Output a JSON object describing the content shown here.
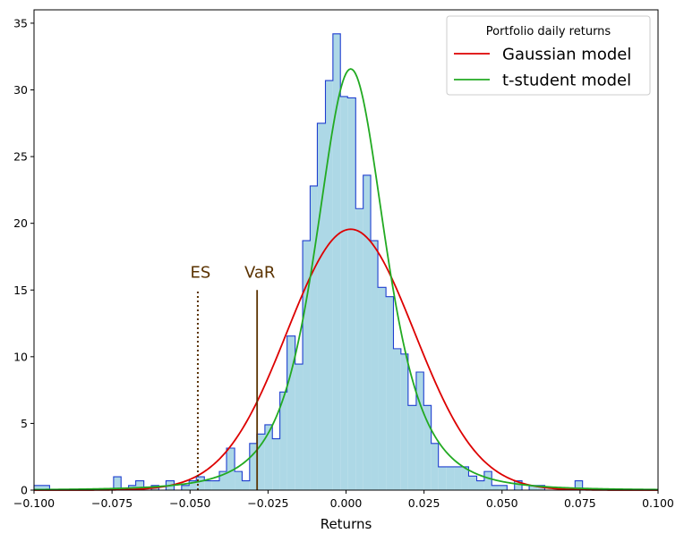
{
  "chart_data": {
    "type": "histogram",
    "title": "",
    "xlabel": "Returns",
    "ylabel": "",
    "xlim": [
      -0.1,
      0.1
    ],
    "ylim": [
      0,
      36
    ],
    "xticks": [
      -0.1,
      -0.075,
      -0.05,
      -0.025,
      0.0,
      0.025,
      0.05,
      0.075,
      0.1
    ],
    "xtick_labels": [
      "−0.100",
      "−0.075",
      "−0.050",
      "−0.025",
      "0.000",
      "0.025",
      "0.050",
      "0.075",
      "0.100"
    ],
    "yticks": [
      0,
      5,
      10,
      15,
      20,
      25,
      30,
      35
    ],
    "ytick_labels": [
      "0",
      "5",
      "10",
      "15",
      "20",
      "25",
      "30",
      "35"
    ],
    "histogram": {
      "name": "Portfolio daily returns",
      "fill_color": "#add8e6",
      "edge_color": "#1f3fcf",
      "bins": [
        {
          "x0": -0.1,
          "x1": -0.095,
          "h": 0.35
        },
        {
          "x0": -0.095,
          "x1": -0.0745,
          "h": 0
        },
        {
          "x0": -0.0745,
          "x1": -0.0721,
          "h": 1.0
        },
        {
          "x0": -0.0721,
          "x1": -0.0697,
          "h": 0
        },
        {
          "x0": -0.0697,
          "x1": -0.0674,
          "h": 0.35
        },
        {
          "x0": -0.0674,
          "x1": -0.0648,
          "h": 0.7
        },
        {
          "x0": -0.0648,
          "x1": -0.0624,
          "h": 0
        },
        {
          "x0": -0.0624,
          "x1": -0.06,
          "h": 0.35
        },
        {
          "x0": -0.06,
          "x1": -0.0577,
          "h": 0
        },
        {
          "x0": -0.0577,
          "x1": -0.0551,
          "h": 0.7
        },
        {
          "x0": -0.0551,
          "x1": -0.0527,
          "h": 0
        },
        {
          "x0": -0.0527,
          "x1": -0.0503,
          "h": 0.35
        },
        {
          "x0": -0.0503,
          "x1": -0.048,
          "h": 0.7
        },
        {
          "x0": -0.048,
          "x1": -0.0454,
          "h": 1.0
        },
        {
          "x0": -0.0454,
          "x1": -0.043,
          "h": 0.7
        },
        {
          "x0": -0.043,
          "x1": -0.0406,
          "h": 0.7
        },
        {
          "x0": -0.0406,
          "x1": -0.0383,
          "h": 1.4
        },
        {
          "x0": -0.0383,
          "x1": -0.0357,
          "h": 3.15
        },
        {
          "x0": -0.0357,
          "x1": -0.0333,
          "h": 1.4
        },
        {
          "x0": -0.0333,
          "x1": -0.0309,
          "h": 0.7
        },
        {
          "x0": -0.0309,
          "x1": -0.0286,
          "h": 3.5
        },
        {
          "x0": -0.0286,
          "x1": -0.026,
          "h": 4.2
        },
        {
          "x0": -0.026,
          "x1": -0.0236,
          "h": 4.9
        },
        {
          "x0": -0.0236,
          "x1": -0.0212,
          "h": 3.85
        },
        {
          "x0": -0.0212,
          "x1": -0.0189,
          "h": 7.35
        },
        {
          "x0": -0.0189,
          "x1": -0.0163,
          "h": 11.55
        },
        {
          "x0": -0.0163,
          "x1": -0.0139,
          "h": 9.45
        },
        {
          "x0": -0.0139,
          "x1": -0.0115,
          "h": 18.7
        },
        {
          "x0": -0.0115,
          "x1": -0.0092,
          "h": 22.8
        },
        {
          "x0": -0.0092,
          "x1": -0.0066,
          "h": 27.5
        },
        {
          "x0": -0.0066,
          "x1": -0.0042,
          "h": 30.7
        },
        {
          "x0": -0.0042,
          "x1": -0.0018,
          "h": 34.2
        },
        {
          "x0": -0.0018,
          "x1": 0.0005,
          "h": 29.5
        },
        {
          "x0": 0.0005,
          "x1": 0.0031,
          "h": 29.4
        },
        {
          "x0": 0.0031,
          "x1": 0.0055,
          "h": 21.1
        },
        {
          "x0": 0.0055,
          "x1": 0.0079,
          "h": 23.6
        },
        {
          "x0": 0.0079,
          "x1": 0.0102,
          "h": 18.7
        },
        {
          "x0": 0.0102,
          "x1": 0.0128,
          "h": 15.2
        },
        {
          "x0": 0.0128,
          "x1": 0.0152,
          "h": 14.5
        },
        {
          "x0": 0.0152,
          "x1": 0.0176,
          "h": 10.6
        },
        {
          "x0": 0.0176,
          "x1": 0.0199,
          "h": 10.2
        },
        {
          "x0": 0.0199,
          "x1": 0.0225,
          "h": 6.35
        },
        {
          "x0": 0.0225,
          "x1": 0.0249,
          "h": 8.85
        },
        {
          "x0": 0.0249,
          "x1": 0.0273,
          "h": 6.35
        },
        {
          "x0": 0.0273,
          "x1": 0.0296,
          "h": 3.5
        },
        {
          "x0": 0.0296,
          "x1": 0.0322,
          "h": 1.75
        },
        {
          "x0": 0.0322,
          "x1": 0.0346,
          "h": 1.75
        },
        {
          "x0": 0.0346,
          "x1": 0.037,
          "h": 1.75
        },
        {
          "x0": 0.037,
          "x1": 0.0393,
          "h": 1.75
        },
        {
          "x0": 0.0393,
          "x1": 0.0419,
          "h": 1.05
        },
        {
          "x0": 0.0419,
          "x1": 0.0443,
          "h": 0.7
        },
        {
          "x0": 0.0443,
          "x1": 0.0467,
          "h": 1.4
        },
        {
          "x0": 0.0467,
          "x1": 0.049,
          "h": 0.35
        },
        {
          "x0": 0.049,
          "x1": 0.0516,
          "h": 0.35
        },
        {
          "x0": 0.0516,
          "x1": 0.054,
          "h": 0
        },
        {
          "x0": 0.054,
          "x1": 0.0564,
          "h": 0.7
        },
        {
          "x0": 0.0564,
          "x1": 0.0587,
          "h": 0
        },
        {
          "x0": 0.0587,
          "x1": 0.0613,
          "h": 0.35
        },
        {
          "x0": 0.0613,
          "x1": 0.0637,
          "h": 0.35
        },
        {
          "x0": 0.0637,
          "x1": 0.0661,
          "h": 0
        },
        {
          "x0": 0.0661,
          "x1": 0.0684,
          "h": 0
        },
        {
          "x0": 0.0684,
          "x1": 0.071,
          "h": 0
        },
        {
          "x0": 0.071,
          "x1": 0.0734,
          "h": 0
        },
        {
          "x0": 0.0734,
          "x1": 0.0758,
          "h": 0.7
        },
        {
          "x0": 0.0758,
          "x1": 0.0781,
          "h": 0
        }
      ]
    },
    "series": [
      {
        "name": "Gaussian model",
        "type": "line",
        "model": "normal",
        "color": "#dd0000",
        "mean": 0.0015,
        "std": 0.0204
      },
      {
        "name": "t-student model",
        "type": "line",
        "model": "student-t",
        "color": "#22aa22",
        "loc": 0.0015,
        "scale": 0.0117,
        "df": 3.2
      }
    ],
    "annotations": [
      {
        "label": "ES",
        "x": -0.0475,
        "y_top": 15,
        "style": "dotted",
        "color": "#5a3200"
      },
      {
        "label": "VaR",
        "x": -0.0285,
        "y_top": 15,
        "style": "solid",
        "color": "#5a3200"
      }
    ],
    "legend": {
      "title": "Portfolio daily returns",
      "placement": "top-right",
      "entries": [
        "Gaussian model",
        "t-student model"
      ]
    },
    "grid": false
  }
}
